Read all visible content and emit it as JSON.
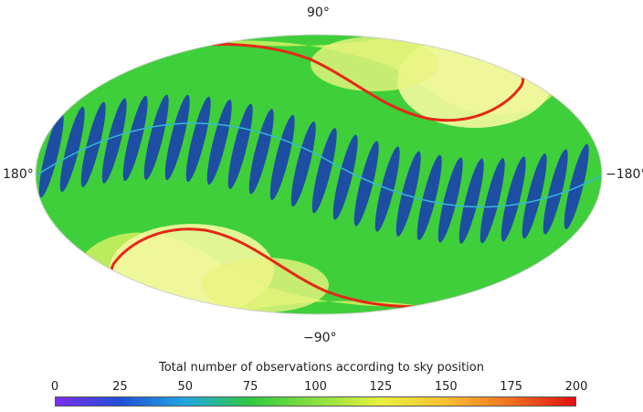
{
  "map": {
    "projection": "mollweide",
    "labels": {
      "top": "90°",
      "bottom": "−90°",
      "left": "180°",
      "right": "−180°"
    },
    "colors": {
      "low": "#1a3fb0",
      "mid": "#33cc33",
      "high_band": "#fbfbb0",
      "peak": "#e02020",
      "ecliptic_line": "#38b8d8"
    }
  },
  "colorbar": {
    "title": "Total number of observations according to sky position",
    "ticks": [
      "0",
      "25",
      "50",
      "75",
      "100",
      "125",
      "150",
      "175",
      "200"
    ],
    "tick_values": [
      0,
      25,
      50,
      75,
      100,
      125,
      150,
      175,
      200
    ],
    "range": [
      0,
      200
    ],
    "stops": [
      "#7a2ff0",
      "#2050d8",
      "#20a8e0",
      "#30c840",
      "#88e040",
      "#e8f040",
      "#f8c030",
      "#f07020",
      "#e01010"
    ]
  }
}
